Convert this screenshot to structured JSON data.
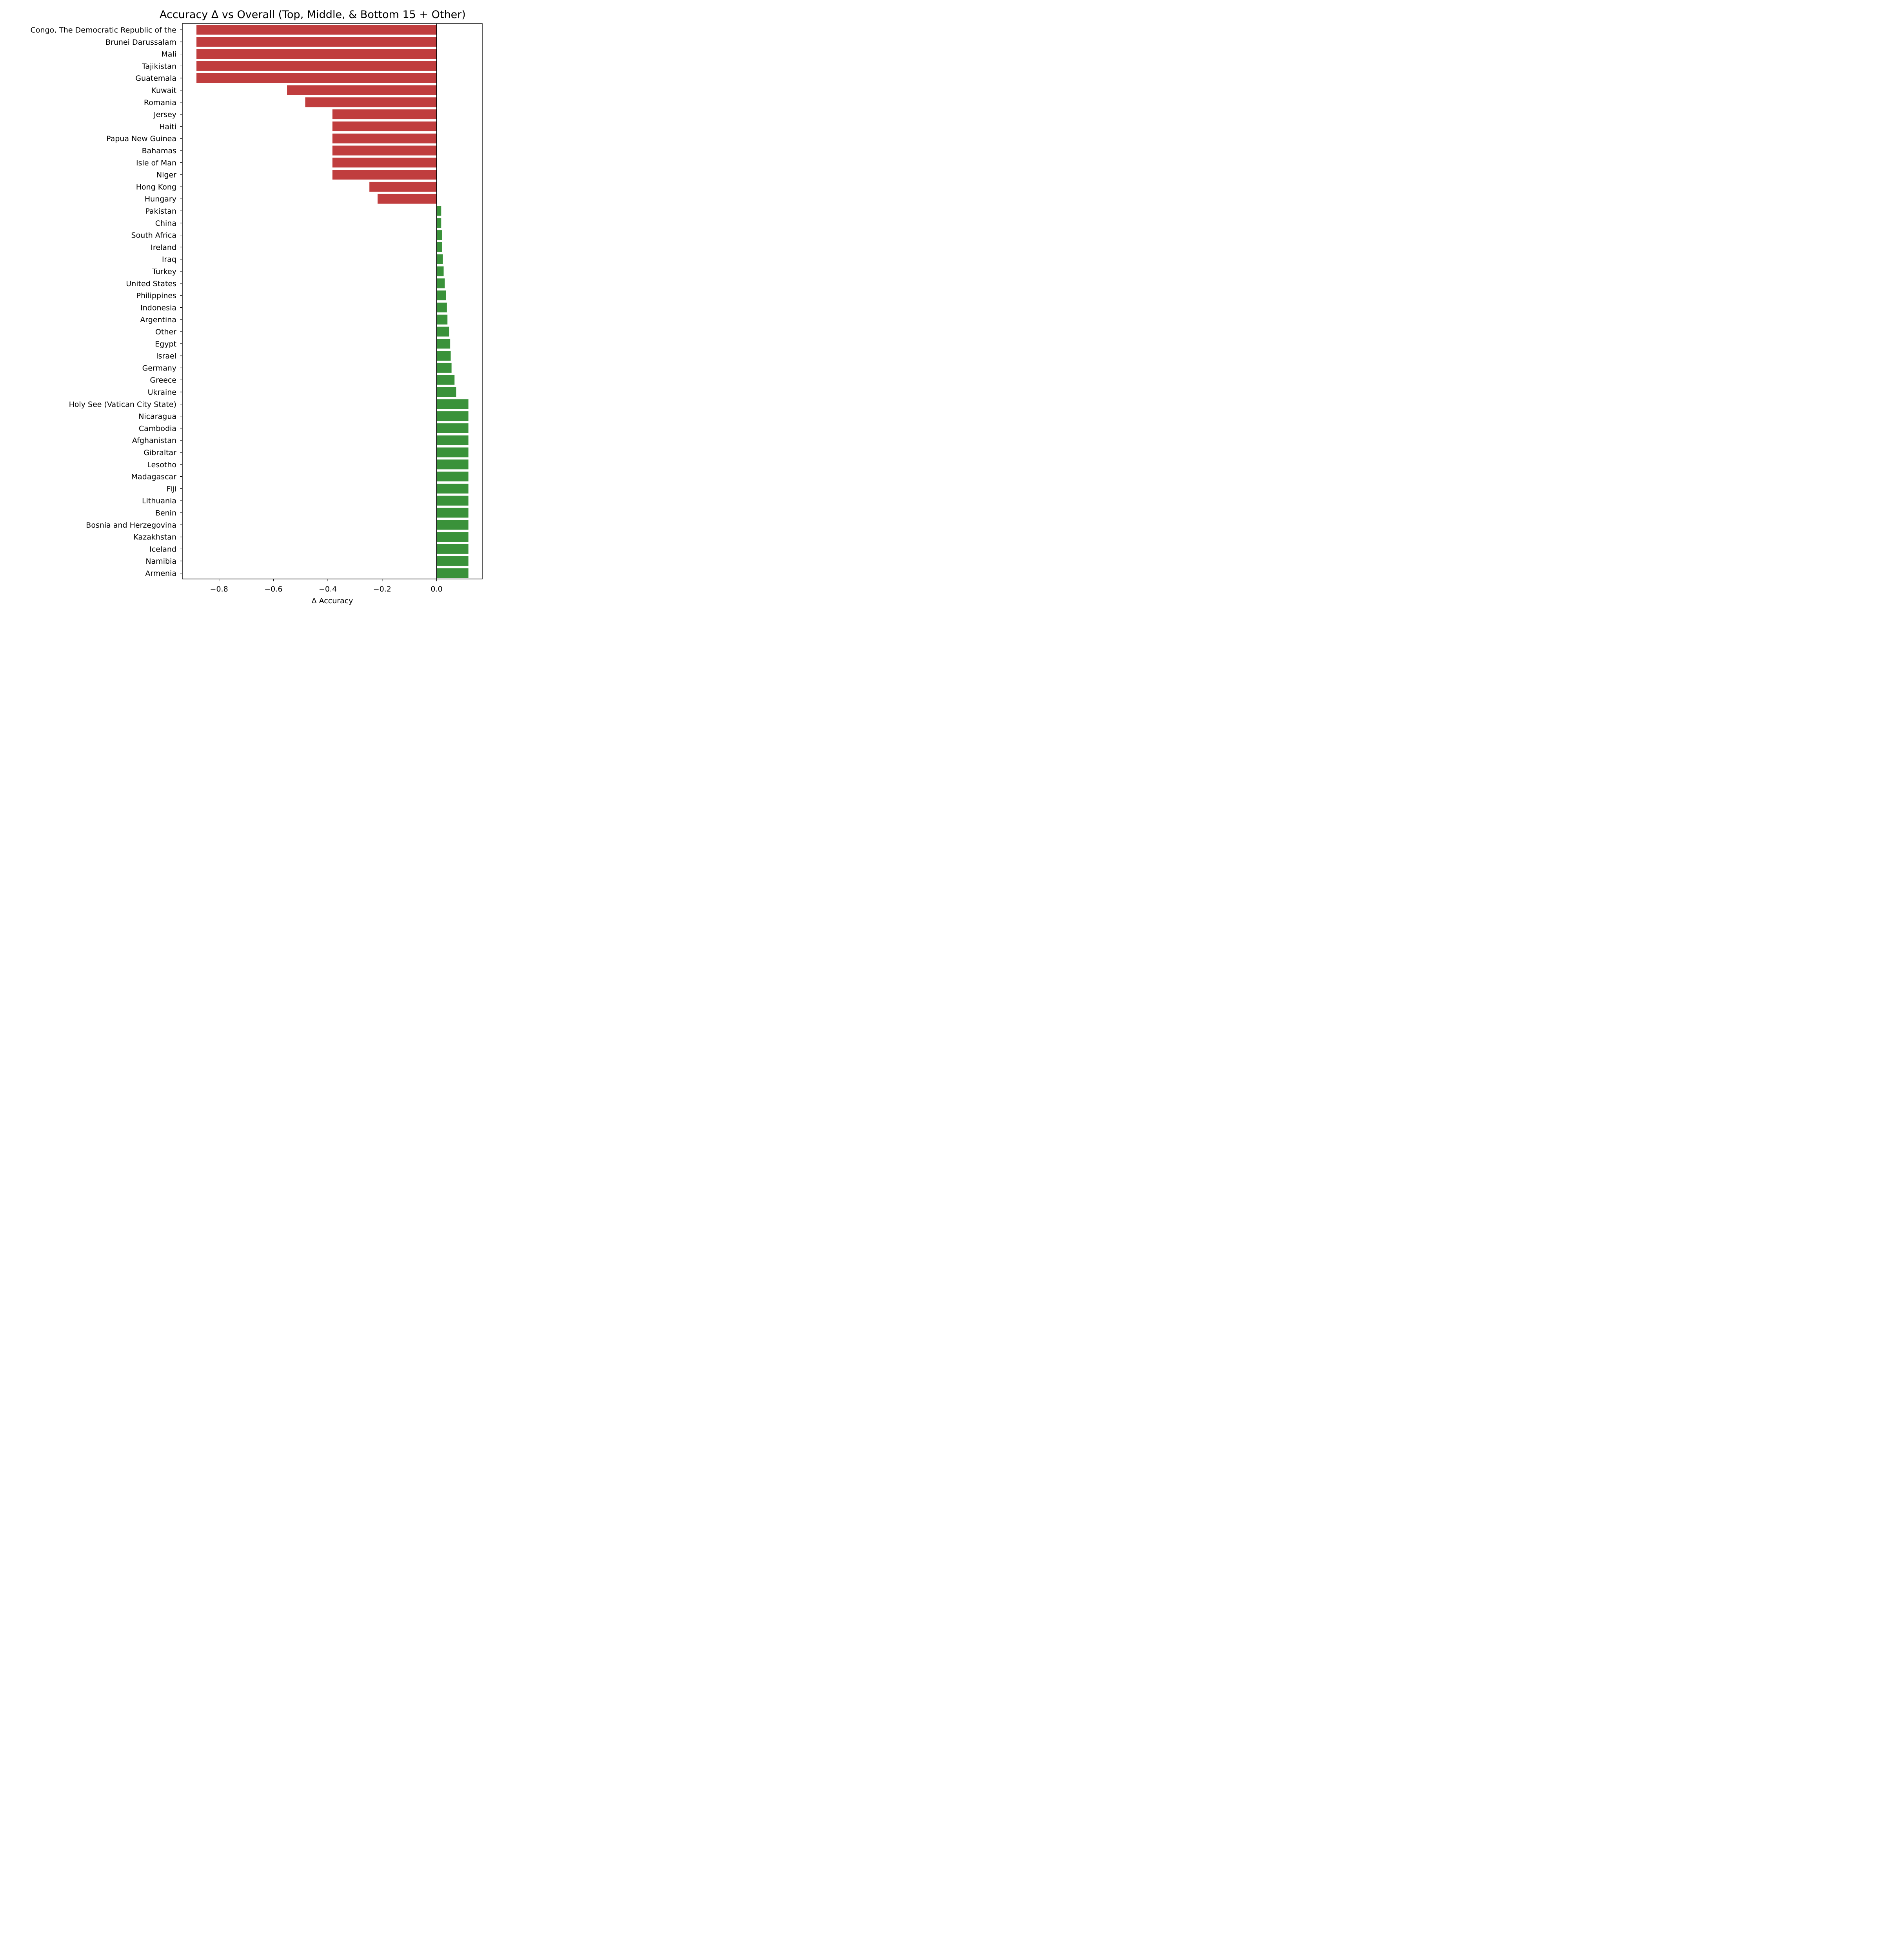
{
  "chart_data": {
    "type": "bar",
    "orientation": "horizontal",
    "title": "Accuracy Δ vs Overall (Top, Middle, & Bottom 15 + Other)",
    "xlabel": "Δ Accuracy",
    "ylabel": "",
    "xlim": [
      -0.935,
      0.168
    ],
    "xticks": [
      -0.8,
      -0.6,
      -0.4,
      -0.2,
      0.0
    ],
    "xtick_labels": [
      "−0.8",
      "−0.6",
      "−0.4",
      "−0.2",
      "0.0"
    ],
    "grid": false,
    "reference_line": 0,
    "colors": {
      "negative": "#c03d3e",
      "positive": "#3a923a"
    },
    "categories": [
      "Congo, The Democratic Republic of the",
      "Brunei Darussalam",
      "Mali",
      "Tajikistan",
      "Guatemala",
      "Kuwait",
      "Romania",
      "Jersey",
      "Haiti",
      "Papua New Guinea",
      "Bahamas",
      "Isle of Man",
      "Niger",
      "Hong Kong",
      "Hungary",
      "Pakistan",
      "China",
      "South Africa",
      "Ireland",
      "Iraq",
      "Turkey",
      "United States",
      "Philippines",
      "Indonesia",
      "Argentina",
      "Other",
      "Egypt",
      "Israel",
      "Germany",
      "Greece",
      "Ukraine",
      "Holy See (Vatican City State)",
      "Nicaragua",
      "Cambodia",
      "Afghanistan",
      "Gibraltar",
      "Lesotho",
      "Madagascar",
      "Fiji",
      "Lithuania",
      "Benin",
      "Bosnia and Herzegovina",
      "Kazakhstan",
      "Iceland",
      "Namibia",
      "Armenia"
    ],
    "values": [
      -0.883,
      -0.883,
      -0.883,
      -0.883,
      -0.883,
      -0.55,
      -0.483,
      -0.383,
      -0.383,
      -0.383,
      -0.383,
      -0.383,
      -0.383,
      -0.247,
      -0.217,
      0.017,
      0.017,
      0.02,
      0.02,
      0.023,
      0.026,
      0.03,
      0.034,
      0.038,
      0.04,
      0.046,
      0.05,
      0.052,
      0.055,
      0.066,
      0.072,
      0.117,
      0.117,
      0.117,
      0.117,
      0.117,
      0.117,
      0.117,
      0.117,
      0.117,
      0.117,
      0.117,
      0.117,
      0.117,
      0.117,
      0.117
    ]
  }
}
